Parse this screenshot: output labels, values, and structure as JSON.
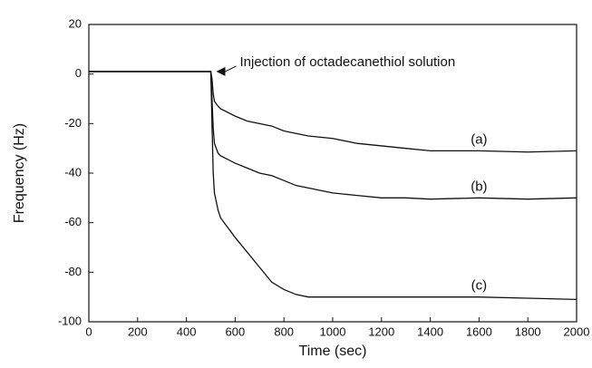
{
  "chart_data": {
    "type": "line",
    "x_label": "Time (sec)",
    "y_label": "Frequency (Hz)",
    "annotation": "Injection of octadecanethiol solution",
    "x": [
      0,
      100,
      200,
      300,
      400,
      490,
      500,
      505,
      510,
      515,
      530,
      540,
      600,
      650,
      700,
      750,
      800,
      850,
      900,
      1000,
      1100,
      1200,
      1300,
      1400,
      1600,
      1800,
      2000
    ],
    "series": [
      {
        "name": "(a)",
        "color": "#111111",
        "values": [
          1,
          1,
          1,
          1,
          1,
          1,
          1,
          -2,
          -8,
          -11,
          -13,
          -14,
          -17,
          -19,
          -20,
          -21,
          -23,
          -24,
          -25,
          -26,
          -28,
          -29,
          -30,
          -31,
          -31,
          -31.5,
          -31
        ]
      },
      {
        "name": "(b)",
        "color": "#111111",
        "values": [
          1,
          1,
          1,
          1,
          1,
          1,
          1,
          -10,
          -22,
          -28,
          -32,
          -33,
          -36,
          -38,
          -40,
          -41,
          -43,
          -45,
          -46,
          -48,
          -49,
          -50,
          -50,
          -50.5,
          -50,
          -50.5,
          -50
        ]
      },
      {
        "name": "(c)",
        "color": "#111111",
        "values": [
          1,
          1,
          1,
          1,
          1,
          1,
          1,
          -20,
          -40,
          -48,
          -55,
          -58,
          -66,
          -72,
          -78,
          -84,
          -87,
          -89,
          -90,
          -90,
          -90,
          -90,
          -90,
          -90,
          -90,
          -90.5,
          -91
        ]
      }
    ],
    "xlim": [
      0,
      2000
    ],
    "xticks": [
      0,
      200,
      400,
      600,
      800,
      1000,
      1200,
      1400,
      1600,
      1800,
      2000
    ],
    "ylim": [
      -100,
      20
    ],
    "yticks": [
      -100,
      -80,
      -60,
      -40,
      -20,
      0,
      20
    ],
    "grid": false
  }
}
